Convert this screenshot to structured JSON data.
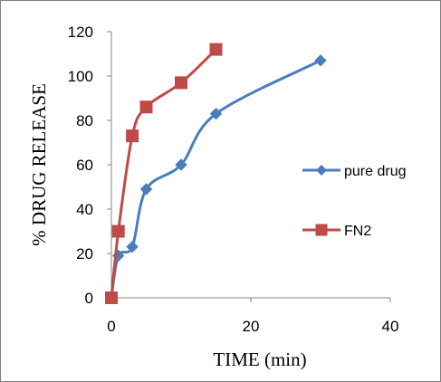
{
  "chart_data": {
    "type": "line",
    "xlabel": "TIME (min)",
    "ylabel": "% DRUG RELEASE",
    "xlim": [
      0,
      40
    ],
    "ylim": [
      0,
      120
    ],
    "x_ticks": [
      "0",
      "20",
      "40"
    ],
    "y_ticks": [
      "0",
      "20",
      "40",
      "60",
      "80",
      "100",
      "120"
    ],
    "grid": false,
    "legend_position": "right",
    "series": [
      {
        "name": "pure drug",
        "color": "#4a7ebb",
        "marker": "diamond",
        "x": [
          0,
          1,
          3,
          5,
          10,
          15,
          30
        ],
        "y": [
          0,
          19,
          23,
          49,
          60,
          83,
          107
        ]
      },
      {
        "name": "FN2",
        "color": "#be4b48",
        "marker": "square",
        "x": [
          0,
          1,
          3,
          5,
          10,
          15
        ],
        "y": [
          0,
          30,
          73,
          86,
          97,
          112
        ]
      }
    ]
  }
}
